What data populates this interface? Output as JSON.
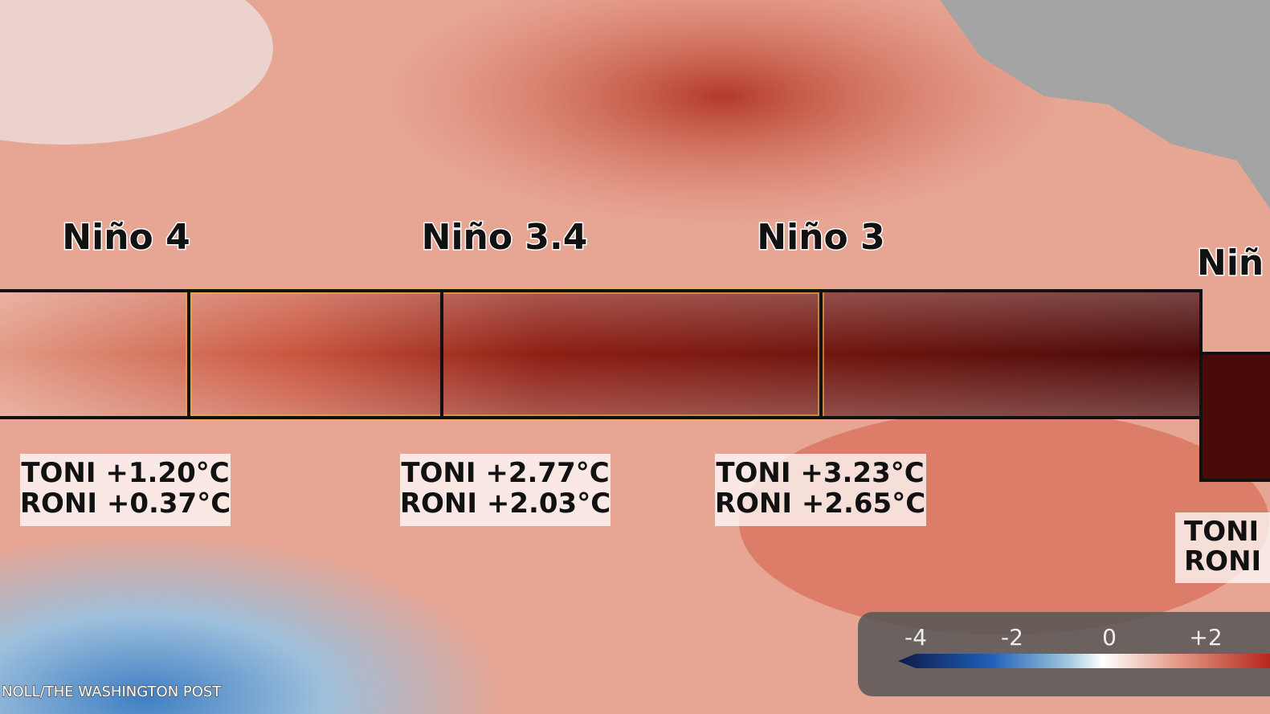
{
  "regions": [
    {
      "name": "Niño 4",
      "toni": "TONI +1.20°C",
      "roni": "RONI +0.37°C"
    },
    {
      "name": "Niño 3.4",
      "toni": "TONI +2.77°C",
      "roni": "RONI +2.03°C"
    },
    {
      "name": "Niño 3",
      "toni": "TONI +3.23°C",
      "roni": "RONI +2.65°C"
    },
    {
      "name": "Niñ",
      "toni": "TONI",
      "roni": "RONI"
    }
  ],
  "legend": {
    "ticks": [
      "-4",
      "-2",
      "0",
      "+2"
    ]
  },
  "credit": "NOLL/THE WASHINGTON POST"
}
